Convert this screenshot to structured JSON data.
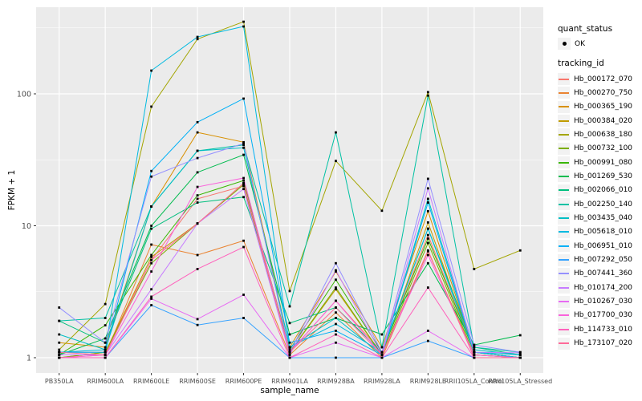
{
  "chart_data": {
    "type": "line",
    "title": "",
    "xlabel": "sample_name",
    "ylabel": "FPKM + 1",
    "y_scale": "log10",
    "y_ticks": [
      1,
      10,
      100
    ],
    "y_minor_ticks": [
      3.162,
      31.62,
      316.2
    ],
    "ylim_log": [
      -0.115,
      2.657
    ],
    "grid": "white-on-grey",
    "legend_position": "right",
    "panel_color": "#EBEBEB",
    "marker": "black-square",
    "categories": [
      "PB350LA",
      "RRIM600LA",
      "RRIM600LE",
      "RRIM600SE",
      "RRIM600PE",
      "RRIM901LA",
      "RRIM928BA",
      "RRIM928LA",
      "RRIM928LE",
      "RRII105LA_Control",
      "RRII105LA_Stressed"
    ],
    "series": [
      {
        "name": "Hb_000172_070",
        "color": "#F8766D",
        "values": [
          1.1,
          1.1,
          5.5,
          16,
          20,
          1.1,
          2.7,
          1.1,
          8.5,
          1.1,
          1.0
        ]
      },
      {
        "name": "Hb_000270_750",
        "color": "#EA8331",
        "values": [
          1.0,
          1.05,
          7.2,
          6.0,
          7.7,
          1.05,
          2.2,
          1.0,
          6.4,
          1.05,
          1.0
        ]
      },
      {
        "name": "Hb_000365_190",
        "color": "#D89000",
        "values": [
          1.3,
          1.2,
          14,
          51,
          43,
          1.2,
          4.5,
          1.2,
          12.9,
          1.1,
          1.0
        ]
      },
      {
        "name": "Hb_000384_020",
        "color": "#C09B00",
        "values": [
          1.0,
          1.1,
          5.8,
          10.4,
          21,
          1.1,
          3.3,
          1.05,
          10.6,
          1.1,
          1.0
        ]
      },
      {
        "name": "Hb_000638_180",
        "color": "#A3A500",
        "values": [
          1.15,
          2.55,
          80,
          260,
          352,
          3.2,
          31,
          13,
          103,
          4.7,
          6.5
        ]
      },
      {
        "name": "Hb_000732_100",
        "color": "#7CAE00",
        "values": [
          1.0,
          1.1,
          5.2,
          10.4,
          20.5,
          1.1,
          3.4,
          1.05,
          7.4,
          1.05,
          1.0
        ]
      },
      {
        "name": "Hb_000991_080",
        "color": "#39B600",
        "values": [
          1.05,
          1.76,
          6.0,
          17,
          22,
          1.15,
          3.9,
          1.1,
          8.0,
          1.1,
          1.0
        ]
      },
      {
        "name": "Hb_001269_530",
        "color": "#00BB4E",
        "values": [
          1.05,
          1.4,
          10,
          25.4,
          34.5,
          1.5,
          2.0,
          1.5,
          5.2,
          1.25,
          1.48
        ]
      },
      {
        "name": "Hb_002066_010",
        "color": "#00BF7D",
        "values": [
          1.9,
          1.3,
          9.5,
          15,
          16.5,
          1.83,
          2.4,
          1.1,
          9.5,
          1.2,
          1.05
        ]
      },
      {
        "name": "Hb_002250_140",
        "color": "#00C1A3",
        "values": [
          1.9,
          2.0,
          14,
          37,
          41,
          2.45,
          51,
          1.2,
          97,
          1.2,
          1.1
        ]
      },
      {
        "name": "Hb_003435_040",
        "color": "#00BFC4",
        "values": [
          1.5,
          1.15,
          14,
          37,
          39,
          1.2,
          2.0,
          1.05,
          16,
          1.15,
          1.05
        ]
      },
      {
        "name": "Hb_005618_010",
        "color": "#00BAE0",
        "values": [
          1.1,
          1.15,
          150,
          270,
          324,
          1.2,
          1.8,
          1.1,
          9.5,
          1.1,
          1.05
        ]
      },
      {
        "name": "Hb_006951_010",
        "color": "#00B0F6",
        "values": [
          1.1,
          1.1,
          26,
          61,
          92,
          1.3,
          1.6,
          1.05,
          15,
          1.1,
          1.0
        ]
      },
      {
        "name": "Hb_007292_050",
        "color": "#35A2FF",
        "values": [
          1.0,
          1.0,
          2.5,
          1.77,
          2.0,
          1.0,
          1.0,
          1.0,
          1.34,
          1.0,
          1.0
        ]
      },
      {
        "name": "Hb_007441_360",
        "color": "#9590FF",
        "values": [
          2.4,
          1.3,
          23.6,
          32.6,
          42,
          1.1,
          5.2,
          1.1,
          22.7,
          1.25,
          1.1
        ]
      },
      {
        "name": "Hb_010174_200",
        "color": "#C77CFF",
        "values": [
          1.05,
          1.05,
          3.3,
          10.4,
          19,
          1.05,
          4.6,
          1.05,
          19.2,
          1.1,
          1.09
        ]
      },
      {
        "name": "Hb_010267_030",
        "color": "#E76BF3",
        "values": [
          1.0,
          1.0,
          2.8,
          1.96,
          3.0,
          1.0,
          1.3,
          1.0,
          1.6,
          1.0,
          1.0
        ]
      },
      {
        "name": "Hb_017700_030",
        "color": "#FA62DB",
        "values": [
          1.0,
          1.05,
          4.5,
          19.7,
          23,
          1.1,
          2.7,
          1.05,
          6.0,
          1.05,
          1.0
        ]
      },
      {
        "name": "Hb_114733_010",
        "color": "#FF62BC",
        "values": [
          1.0,
          1.0,
          2.9,
          4.7,
          6.9,
          1.0,
          1.5,
          1.0,
          3.4,
          1.0,
          1.0
        ]
      },
      {
        "name": "Hb_173107_020",
        "color": "#FF6A98",
        "values": [
          1.1,
          1.05,
          5.5,
          10.4,
          21,
          1.1,
          2.4,
          1.05,
          6.5,
          1.0,
          1.0
        ]
      }
    ]
  },
  "legend": {
    "quant_title": "quant_status",
    "quant_items": [
      {
        "label": "OK",
        "marker": "black-point"
      }
    ],
    "tracking_title": "tracking_id"
  }
}
